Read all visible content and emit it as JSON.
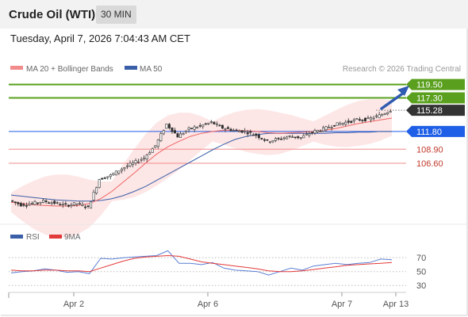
{
  "header": {
    "title": "Crude Oil (WTI)",
    "timeframe": "30 MIN"
  },
  "datetime": "Tuesday, April 7, 2026 7:04:43 AM CET",
  "legend": {
    "ma20": "MA 20 + Bollinger Bands",
    "ma50": "MA 50",
    "rsi": "RSI",
    "rsi_ma": "9MA"
  },
  "credit": "Research © 2026 Trading Central",
  "colors": {
    "resistance": "#5aa01e",
    "support": "#f28b8b",
    "price": "#333333",
    "pivot": "#1f5ee6",
    "ma20": "#f06464",
    "ma50": "#3a5fa8",
    "band": "#fde6e6",
    "arrow": "#2f5bb0"
  },
  "chart_data": [
    {
      "type": "line",
      "panel": "price",
      "x_ticks": [
        "Apr 2",
        "Apr 6",
        "Apr 7",
        "Apr 13"
      ],
      "levels": [
        {
          "value": 119.5,
          "label": "119.50",
          "kind": "resistance"
        },
        {
          "value": 117.3,
          "label": "117.30",
          "kind": "resistance"
        },
        {
          "value": 115.28,
          "label": "115.28",
          "kind": "last-price"
        },
        {
          "value": 111.8,
          "label": "111.80",
          "kind": "pivot"
        },
        {
          "value": 108.9,
          "label": "108.90",
          "kind": "support"
        },
        {
          "value": 106.6,
          "label": "106.60",
          "kind": "support"
        }
      ],
      "series": [
        {
          "name": "MA 20",
          "values": [
            100.2,
            100.0,
            99.8,
            99.7,
            99.6,
            99.6,
            99.7,
            100.0,
            100.8,
            102.0,
            103.5,
            105.0,
            106.6,
            108.1,
            109.3,
            110.2,
            111.0,
            111.5,
            111.8,
            112.0,
            112.0,
            111.9,
            111.8,
            111.6,
            111.5,
            111.6,
            111.7,
            111.8,
            112.0,
            112.3,
            112.7,
            113.1,
            113.4,
            113.7,
            114.0
          ]
        },
        {
          "name": "MA 50",
          "values": [
            101.4,
            101.2,
            101.0,
            100.8,
            100.6,
            100.5,
            100.4,
            100.4,
            100.5,
            100.8,
            101.3,
            102.0,
            102.8,
            103.8,
            104.8,
            105.8,
            106.8,
            107.8,
            108.8,
            109.7,
            110.5,
            111.0,
            111.3,
            111.5,
            111.5,
            111.5,
            111.5,
            111.5,
            111.5,
            111.6,
            111.6,
            111.7,
            111.7,
            111.8,
            111.8
          ]
        },
        {
          "name": "Price",
          "values": [
            100.5,
            99.8,
            100.0,
            100.4,
            100.1,
            99.7,
            100.0,
            99.4,
            104.0,
            104.6,
            105.7,
            106.6,
            107.5,
            109.5,
            113.0,
            111.0,
            112.2,
            112.7,
            113.3,
            112.4,
            112.0,
            111.8,
            111.2,
            110.2,
            110.6,
            111.0,
            110.8,
            111.7,
            112.2,
            112.9,
            113.3,
            113.7,
            113.8,
            114.4,
            115.3
          ]
        }
      ],
      "ylim": [
        97,
        121
      ]
    },
    {
      "type": "line",
      "panel": "rsi",
      "y_ticks": [
        30,
        50,
        70
      ],
      "series": [
        {
          "name": "RSI",
          "values": [
            48,
            50,
            51,
            54,
            52,
            49,
            50,
            47,
            69,
            68,
            70,
            71,
            72,
            73,
            80,
            62,
            62,
            60,
            63,
            55,
            52,
            51,
            50,
            45,
            50,
            55,
            52,
            58,
            60,
            62,
            60,
            62,
            63,
            68,
            67
          ]
        },
        {
          "name": "9MA",
          "values": [
            52,
            51,
            51,
            52,
            52,
            51,
            51,
            50,
            55,
            60,
            65,
            69,
            71,
            72,
            73,
            72,
            68,
            64,
            62,
            60,
            58,
            56,
            54,
            51,
            50,
            50,
            51,
            53,
            55,
            57,
            59,
            60,
            61,
            62,
            63
          ]
        }
      ],
      "ylim": [
        20,
        85
      ]
    }
  ]
}
